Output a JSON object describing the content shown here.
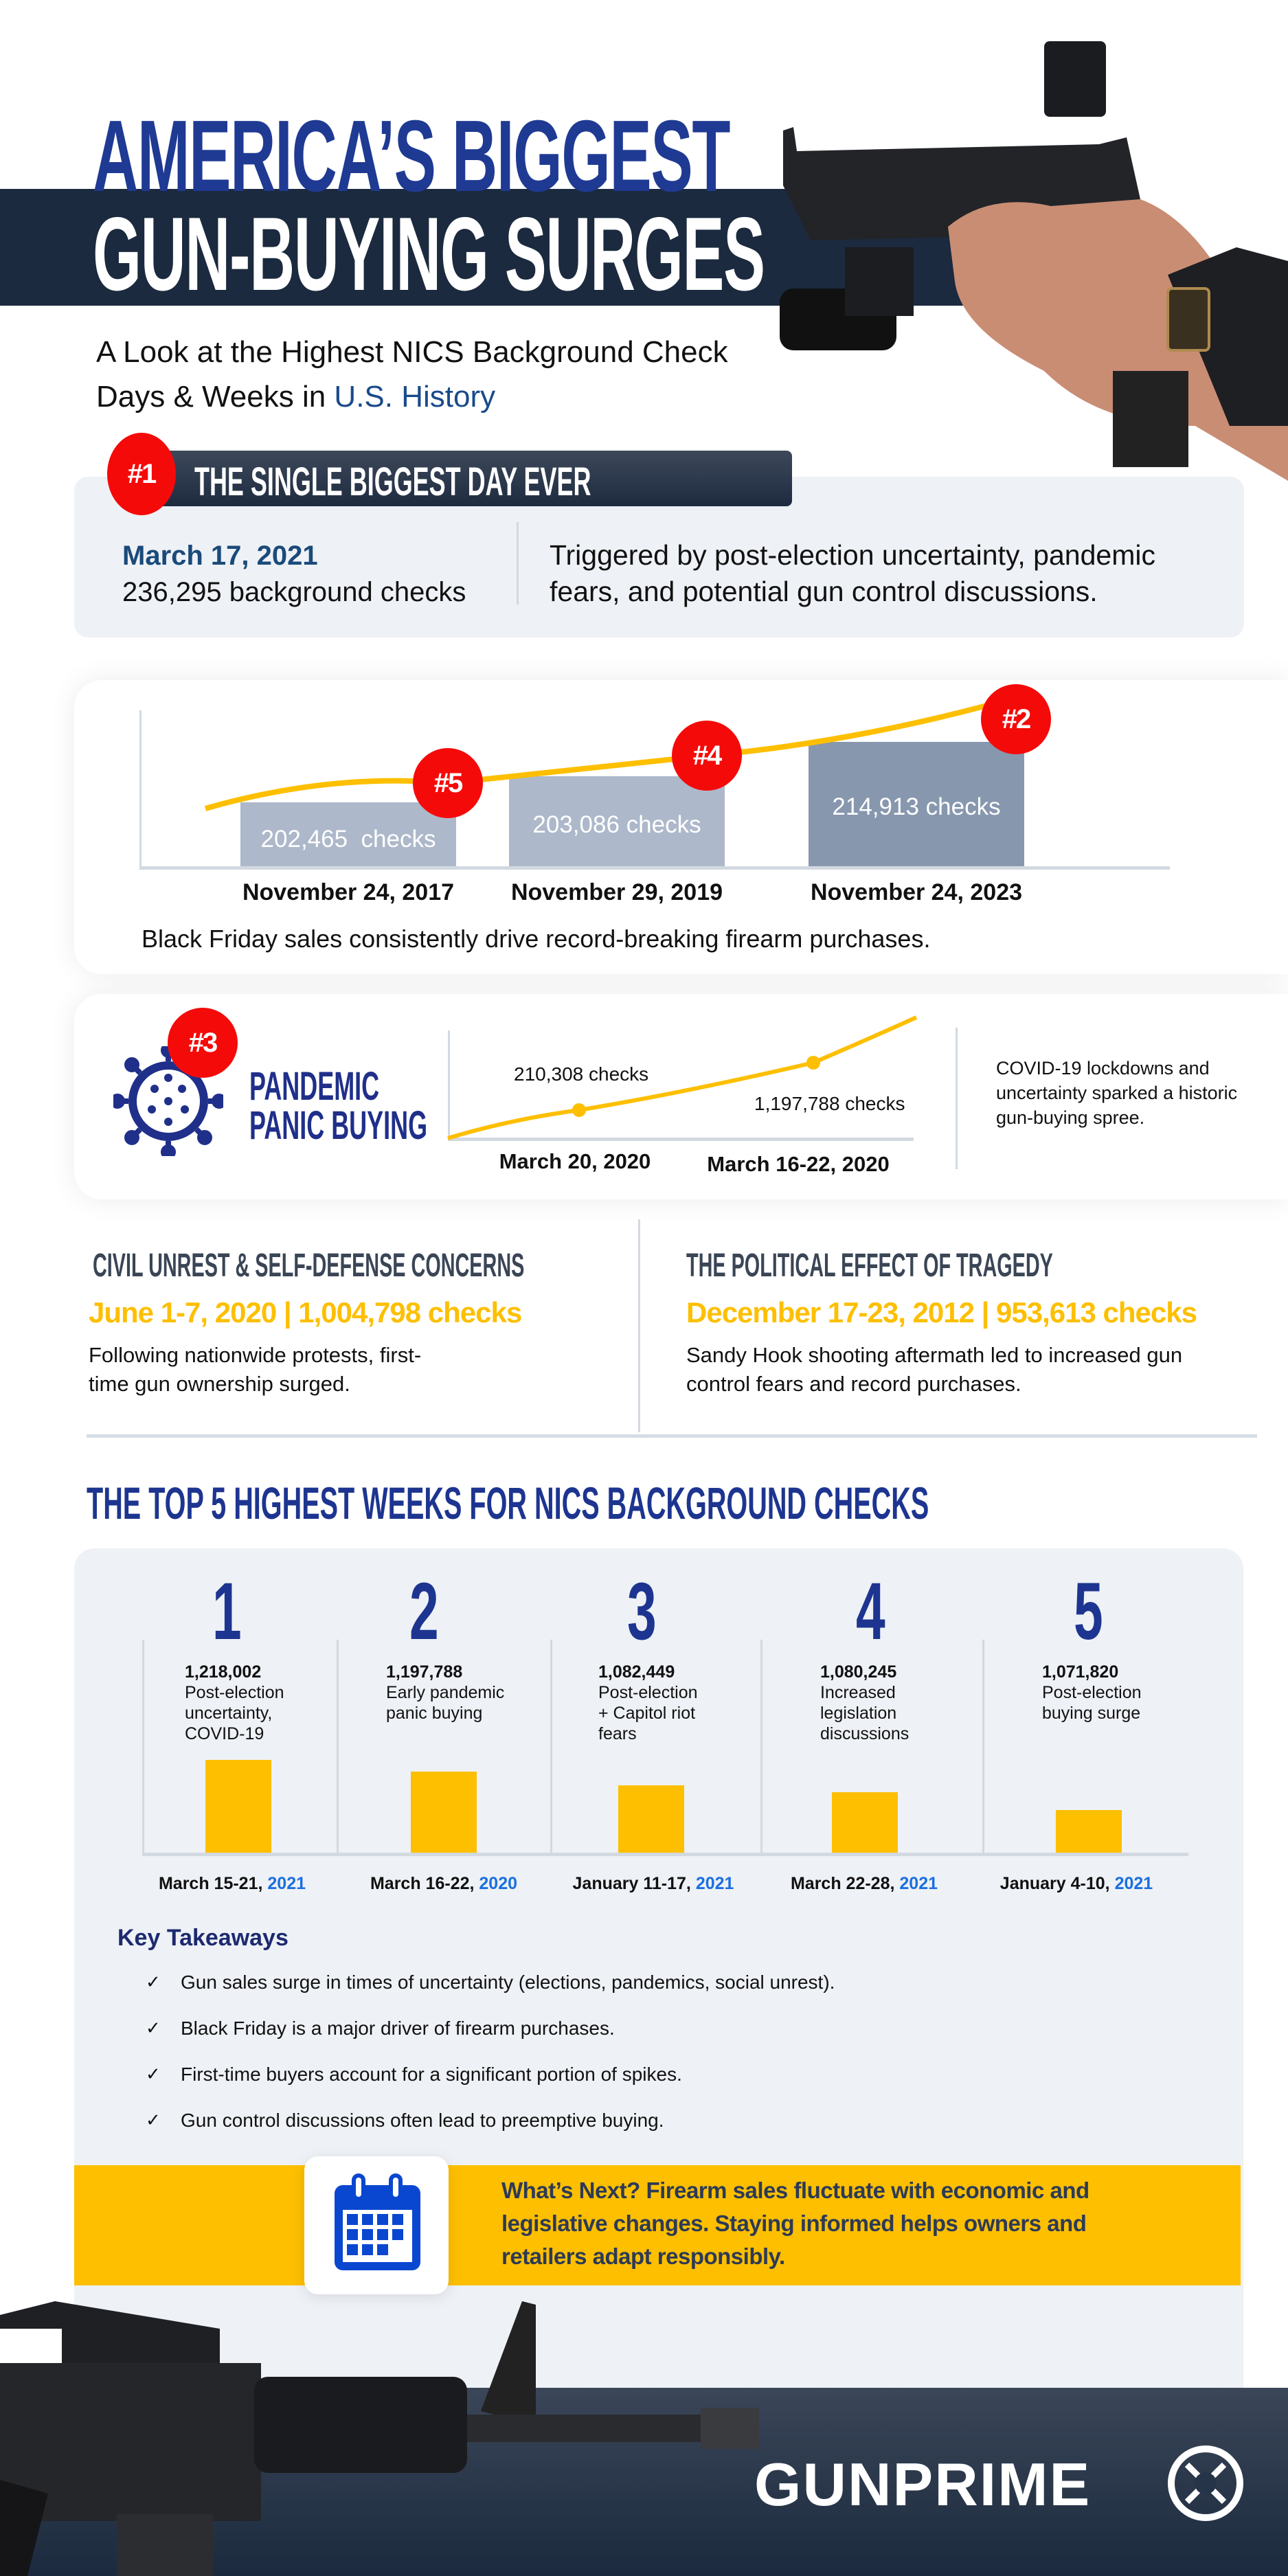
{
  "header": {
    "title_line1": "AMERICA’S BIGGEST",
    "title_line2": "GUN-BUYING SURGES",
    "subtitle_line1": "A Look at the Highest NICS Background Check",
    "subtitle_line2_prefix": "Days & Weeks in ",
    "subtitle_line2_highlight": "U.S. History"
  },
  "biggest_day": {
    "rank": "#1",
    "heading": "THE SINGLE BIGGEST DAY EVER",
    "date": "March 17, 2021",
    "checks": "236,295 background checks",
    "description_line1": "Triggered by post-election uncertainty, pandemic",
    "description_line2": "fears, and potential gun control discussions."
  },
  "black_friday": {
    "bars": [
      {
        "rank": "#5",
        "label": "202,465  checks",
        "date": "November 24, 2017"
      },
      {
        "rank": "#4",
        "label": "203,086 checks",
        "date": "November 29, 2019"
      },
      {
        "rank": "#2",
        "label": "214,913 checks",
        "date": "November 24, 2023"
      }
    ],
    "caption": "Black Friday sales consistently drive record-breaking firearm purchases."
  },
  "pandemic": {
    "rank": "#3",
    "title_line1": "PANDEMIC",
    "title_line2": "PANIC BUYING",
    "point1_label": "210,308 checks",
    "point1_date": "March 20, 2020",
    "point2_label": "1,197,788 checks",
    "point2_date": "March 16-22, 2020",
    "description_line1": "COVID-19 lockdowns and",
    "description_line2": "uncertainty sparked a historic",
    "description_line3": "gun-buying spree."
  },
  "civil_unrest": {
    "heading": "CIVIL UNREST & SELF-DEFENSE CONCERNS",
    "stat": "June 1-7, 2020 | 1,004,798 checks",
    "body_line1": "Following nationwide protests, first-",
    "body_line2": "time gun ownership surged."
  },
  "tragedy": {
    "heading": "THE POLITICAL EFFECT OF TRAGEDY",
    "stat": "December 17-23, 2012 | 953,613 checks",
    "body_line1": "Sandy Hook shooting aftermath led to increased gun",
    "body_line2": "control fears and record purchases."
  },
  "top5": {
    "heading": "THE TOP 5 HIGHEST WEEKS FOR NICS BACKGROUND CHECKS",
    "weeks": [
      {
        "rank": "1",
        "checks": "1,218,002",
        "reason": [
          "Post-election",
          "uncertainty,",
          "COVID-19"
        ],
        "dates": "March 15-21, ",
        "year": "2021"
      },
      {
        "rank": "2",
        "checks": "1,197,788",
        "reason": [
          "Early pandemic",
          "panic buying"
        ],
        "dates": "March 16-22, ",
        "year": "2020"
      },
      {
        "rank": "3",
        "checks": "1,082,449",
        "reason": [
          "Post-election",
          "+ Capitol riot",
          "fears"
        ],
        "dates": "January 11-17, ",
        "year": "2021"
      },
      {
        "rank": "4",
        "checks": "1,080,245",
        "reason": [
          "Increased",
          "legislation",
          "discussions"
        ],
        "dates": "March 22-28, ",
        "year": "2021"
      },
      {
        "rank": "5",
        "checks": "1,071,820",
        "reason": [
          "Post-election",
          "buying surge"
        ],
        "dates": "January 4-10, ",
        "year": "2021"
      }
    ]
  },
  "takeaways": {
    "heading": "Key Takeaways",
    "check_glyph": "✓",
    "items": [
      "Gun sales surge in times of uncertainty (elections, pandemics, social unrest).",
      "Black Friday is a major driver of firearm purchases.",
      "First-time buyers account for a significant portion of spikes.",
      "Gun control discussions often lead to preemptive buying."
    ]
  },
  "whats_next": {
    "line1": "What’s Next? Firearm sales fluctuate with economic and",
    "line2": "legislative changes. Staying informed helps owners and",
    "line3": "retailers adapt responsibly."
  },
  "footer": {
    "brand": "GUNPRIME"
  },
  "colors": {
    "navy": "#1d3590",
    "yellow": "#fdbf00",
    "red": "#f50a0a",
    "dark": "#1b2a3e",
    "panel": "#eef1f5"
  }
}
